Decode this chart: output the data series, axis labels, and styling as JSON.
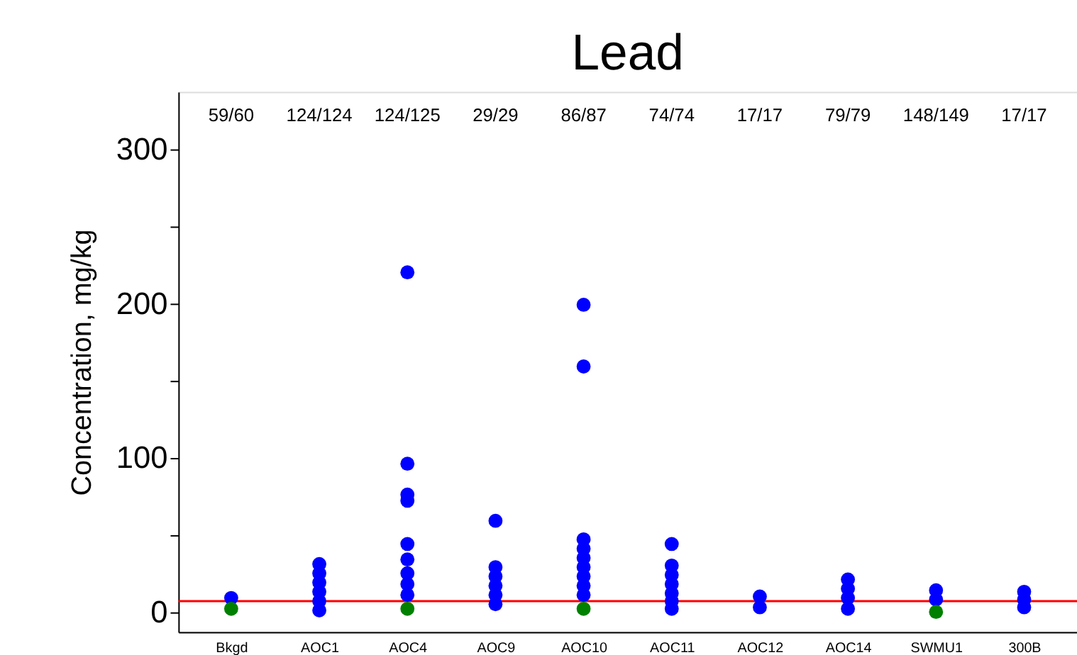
{
  "chart_data": {
    "type": "scatter",
    "title": "Lead",
    "ylabel": "Concentration, mg/kg",
    "categories": [
      "Bkgd",
      "AOC1",
      "AOC4",
      "AOC9",
      "AOC10",
      "AOC11",
      "AOC12",
      "AOC14",
      "SWMU1",
      "300B"
    ],
    "series": [
      {
        "color": "#0000ff",
        "marker": "circle",
        "x": [
          "Bkgd",
          "AOC1",
          "AOC1",
          "AOC1",
          "AOC1",
          "AOC1",
          "AOC1",
          "AOC4",
          "AOC4",
          "AOC4",
          "AOC4",
          "AOC4",
          "AOC4",
          "AOC4",
          "AOC4",
          "AOC4",
          "AOC9",
          "AOC9",
          "AOC9",
          "AOC9",
          "AOC9",
          "AOC9",
          "AOC10",
          "AOC10",
          "AOC10",
          "AOC10",
          "AOC10",
          "AOC10",
          "AOC10",
          "AOC10",
          "AOC10",
          "AOC11",
          "AOC11",
          "AOC11",
          "AOC11",
          "AOC11",
          "AOC11",
          "AOC11",
          "AOC12",
          "AOC12",
          "AOC14",
          "AOC14",
          "AOC14",
          "AOC14",
          "SWMU1",
          "SWMU1",
          "300B",
          "300B",
          "300B"
        ],
        "values": [
          9,
          31,
          25,
          19,
          13,
          7,
          1,
          220,
          96,
          76,
          72,
          44,
          34,
          25,
          18,
          11,
          59,
          29,
          23,
          17,
          11,
          5,
          199,
          159,
          47,
          41,
          35,
          29,
          23,
          17,
          11,
          44,
          30,
          24,
          18,
          12,
          7,
          2,
          10,
          3,
          21,
          15,
          9,
          2,
          14,
          8,
          13,
          8,
          3
        ]
      },
      {
        "color": "#008000",
        "marker": "circle",
        "x": [
          "Bkgd",
          "AOC4",
          "AOC10",
          "SWMU1"
        ],
        "values": [
          2,
          2,
          2,
          0
        ]
      }
    ],
    "ylim": [
      -13,
      337
    ],
    "yticks": [
      0,
      {
        "value": 50,
        "label": null
      },
      100,
      {
        "value": 150,
        "label": null
      },
      200,
      {
        "value": 250,
        "label": null
      },
      300
    ],
    "grid": false,
    "ref_lines": [
      {
        "axis": "y",
        "value": 7,
        "color": "#ff0000"
      }
    ],
    "annotations": [
      "59/60",
      "124/124",
      "124/125",
      "29/29",
      "86/87",
      "74/74",
      "17/17",
      "79/79",
      "148/149",
      "17/17"
    ]
  }
}
